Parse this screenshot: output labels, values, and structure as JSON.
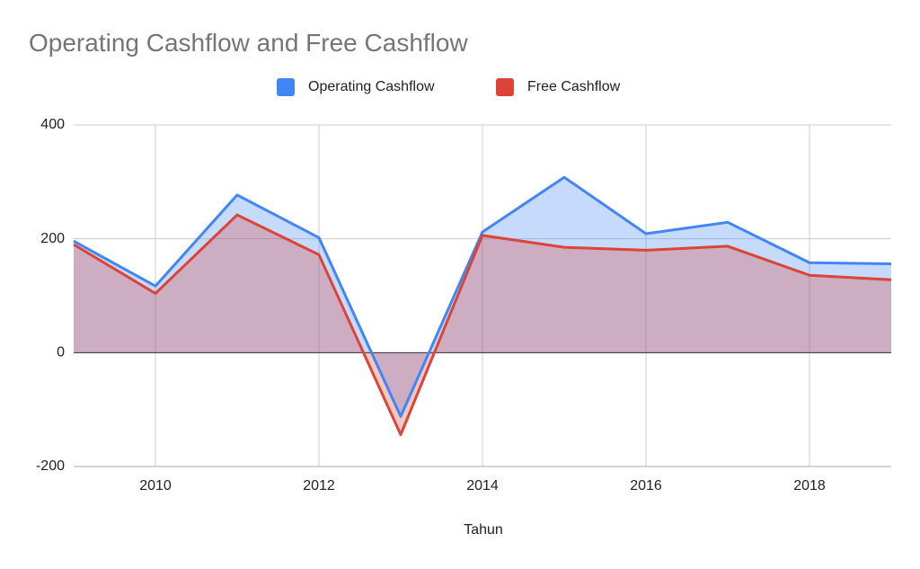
{
  "chart_data": {
    "type": "area",
    "title": "Operating Cashflow and Free Cashflow",
    "x_label": "Tahun",
    "x": [
      2009,
      2010,
      2011,
      2012,
      2013,
      2014,
      2015,
      2016,
      2017,
      2018,
      2019
    ],
    "series": [
      {
        "name": "Operating Cashflow",
        "color": "#4285f4",
        "values": [
          196,
          117,
          277,
          202,
          -112,
          212,
          308,
          209,
          229,
          158,
          156
        ]
      },
      {
        "name": "Free Cashflow",
        "color": "#db4437",
        "values": [
          190,
          104,
          242,
          172,
          -144,
          206,
          185,
          180,
          187,
          136,
          128
        ]
      }
    ],
    "xlim": [
      2009,
      2019
    ],
    "xticks": [
      2010,
      2012,
      2014,
      2016,
      2018
    ],
    "ylim": [
      -200,
      400
    ],
    "yticks": [
      -200,
      0,
      200,
      400
    ],
    "grid": true,
    "legend": "top"
  }
}
